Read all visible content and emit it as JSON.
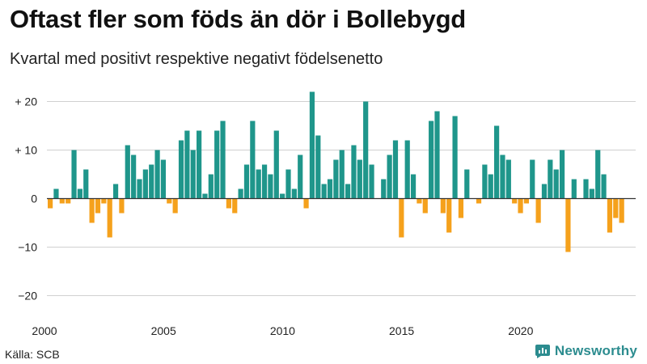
{
  "header": {
    "title": "Oftast fler som föds än dör i Bollebygd",
    "subtitle": "Kvartal med positivt respektive negativt födelsenetto"
  },
  "footer": {
    "source": "Källa: SCB",
    "brand": "Newsworthy"
  },
  "colors": {
    "positive": "#1f968b",
    "negative": "#f5a11c",
    "grid": "#d0d0d0",
    "axis": "#333333"
  },
  "chart_data": {
    "type": "bar",
    "title": "Oftast fler som föds än dör i Bollebygd",
    "subtitle": "Kvartal med positivt respektive negativt födelsenetto",
    "xlabel": "",
    "ylabel": "",
    "ylim": [
      -20,
      22
    ],
    "y_ticks": [
      {
        "value": 20,
        "label": "+ 20"
      },
      {
        "value": 10,
        "label": "+ 10"
      },
      {
        "value": 0,
        "label": "0"
      },
      {
        "value": -10,
        "label": "−10"
      },
      {
        "value": -20,
        "label": "−20"
      }
    ],
    "x_ticks": [
      {
        "value": 2000,
        "label": "2000"
      },
      {
        "value": 2005,
        "label": "2005"
      },
      {
        "value": 2010,
        "label": "2010"
      },
      {
        "value": 2015,
        "label": "2015"
      },
      {
        "value": 2020,
        "label": "2020"
      }
    ],
    "start_year": 2000,
    "periods_per_year": 4,
    "values": [
      -2,
      2,
      -1,
      -1,
      10,
      2,
      6,
      -5,
      -3,
      -1,
      -8,
      3,
      -3,
      11,
      9,
      4,
      6,
      7,
      10,
      8,
      -1,
      -3,
      12,
      14,
      10,
      14,
      1,
      5,
      14,
      16,
      -2,
      -3,
      2,
      7,
      16,
      6,
      7,
      5,
      14,
      1,
      6,
      2,
      9,
      -2,
      22,
      13,
      3,
      4,
      8,
      10,
      3,
      11,
      8,
      20,
      7,
      0,
      4,
      9,
      12,
      -8,
      12,
      5,
      -1,
      -3,
      16,
      18,
      -3,
      -7,
      17,
      -4,
      6,
      0,
      -1,
      7,
      5,
      15,
      9,
      8,
      -1,
      -3,
      -1,
      8,
      -5,
      3,
      8,
      6,
      10,
      -11,
      4,
      0,
      4,
      2,
      10,
      5,
      -7,
      -4,
      -5
    ]
  }
}
